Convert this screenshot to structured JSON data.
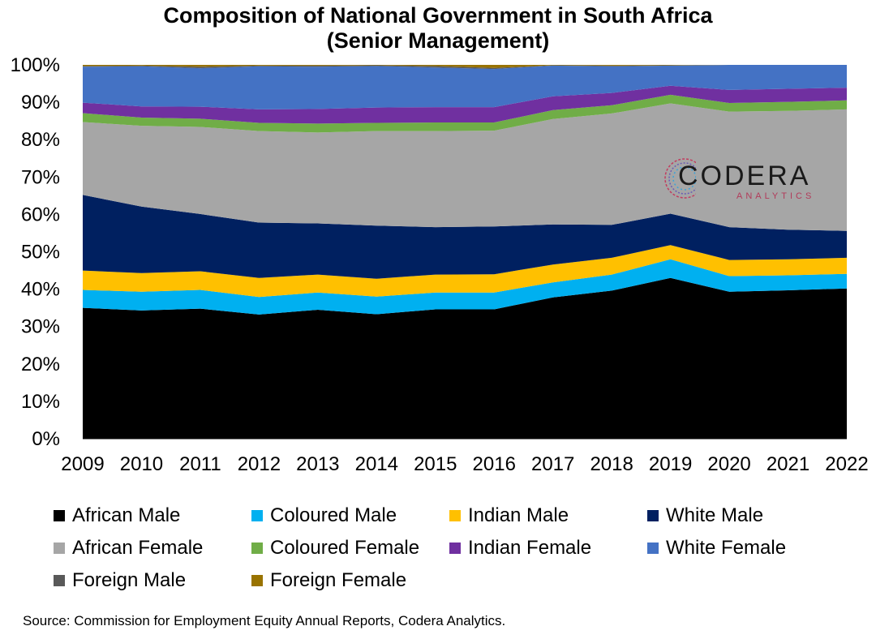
{
  "title_line1": "Composition of National Government in South Africa",
  "title_line2": "(Senior Management)",
  "source": "Source: Commission for Employment Equity Annual Reports, Codera Analytics.",
  "logo": {
    "name": "CODERA",
    "sub": "ANALYTICS"
  },
  "chart_data": {
    "type": "area",
    "stacked": true,
    "title": "Composition of National Government in South Africa (Senior Management)",
    "x": [
      "2009",
      "2010",
      "2011",
      "2012",
      "2013",
      "2014",
      "2015",
      "2016",
      "2017",
      "2018",
      "2019",
      "2020",
      "2021",
      "2022"
    ],
    "ylim": [
      0,
      100
    ],
    "yticks": [
      "0%",
      "10%",
      "20%",
      "30%",
      "40%",
      "50%",
      "60%",
      "70%",
      "80%",
      "90%",
      "100%"
    ],
    "grid": false,
    "legend_position": "bottom",
    "series": [
      {
        "name": "African Male",
        "color": "#000000",
        "values": [
          35.0,
          34.3,
          34.8,
          33.2,
          34.5,
          33.3,
          34.6,
          34.6,
          37.8,
          39.6,
          43.0,
          39.3,
          39.7,
          40.2
        ]
      },
      {
        "name": "Coloured Male",
        "color": "#00B0F0",
        "values": [
          4.8,
          5.0,
          5.0,
          4.7,
          4.6,
          4.7,
          4.5,
          4.5,
          4.0,
          4.3,
          5.0,
          4.2,
          4.0,
          3.9
        ]
      },
      {
        "name": "Indian Male",
        "color": "#FFC000",
        "values": [
          5.2,
          5.0,
          5.0,
          5.1,
          4.8,
          4.8,
          4.8,
          4.9,
          4.8,
          4.5,
          3.8,
          4.3,
          4.3,
          4.3
        ]
      },
      {
        "name": "White Male",
        "color": "#002060",
        "values": [
          20.2,
          17.8,
          15.3,
          14.8,
          13.7,
          14.2,
          12.7,
          12.8,
          10.7,
          8.8,
          8.4,
          8.8,
          7.9,
          7.2
        ]
      },
      {
        "name": "African Female",
        "color": "#A6A6A6",
        "values": [
          19.5,
          21.6,
          23.3,
          24.5,
          24.3,
          25.3,
          25.7,
          25.6,
          28.2,
          29.8,
          29.5,
          30.9,
          31.8,
          32.5
        ]
      },
      {
        "name": "Coloured Female",
        "color": "#70AD47",
        "values": [
          2.4,
          2.2,
          2.2,
          2.2,
          2.4,
          2.2,
          2.3,
          2.2,
          2.4,
          2.2,
          2.3,
          2.3,
          2.4,
          2.4
        ]
      },
      {
        "name": "Indian Female",
        "color": "#7030A0",
        "values": [
          2.8,
          3.0,
          3.2,
          3.6,
          3.9,
          4.1,
          4.1,
          4.1,
          3.7,
          3.3,
          2.4,
          3.5,
          3.5,
          3.4
        ]
      },
      {
        "name": "White Female",
        "color": "#4472C4",
        "values": [
          9.6,
          10.7,
          10.3,
          11.5,
          11.3,
          11.1,
          10.6,
          10.2,
          8.2,
          7.1,
          5.4,
          6.7,
          6.4,
          6.1
        ]
      },
      {
        "name": "Foreign Male",
        "color": "#595959",
        "values": [
          0.2,
          0.2,
          0.4,
          0.2,
          0.3,
          0.2,
          0.4,
          0.3,
          0.1,
          0.2,
          0.1,
          0.0,
          0.0,
          0.0
        ]
      },
      {
        "name": "Foreign Female",
        "color": "#997300",
        "values": [
          0.3,
          0.2,
          0.5,
          0.2,
          0.2,
          0.1,
          0.3,
          0.8,
          0.1,
          0.2,
          0.1,
          0.0,
          0.0,
          0.0
        ]
      }
    ]
  }
}
